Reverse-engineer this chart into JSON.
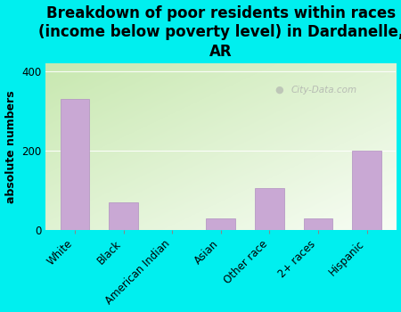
{
  "title": "Breakdown of poor residents within races\n(income below poverty level) in Dardanelle,\nAR",
  "ylabel": "absolute numbers",
  "categories": [
    "White",
    "Black",
    "American Indian",
    "Asian",
    "Other race",
    "2+ races",
    "Hispanic"
  ],
  "values": [
    330,
    70,
    0,
    30,
    105,
    30,
    200
  ],
  "bar_color": "#c9a8d4",
  "bar_edge_color": "#b090c0",
  "background_color": "#00efef",
  "plot_bg_color_top_left": "#c8e8b0",
  "plot_bg_color_bottom_right": "#f8fdf5",
  "ylim": [
    0,
    420
  ],
  "yticks": [
    0,
    200,
    400
  ],
  "watermark": "City-Data.com",
  "title_fontsize": 12,
  "ylabel_fontsize": 9,
  "tick_fontsize": 8.5
}
